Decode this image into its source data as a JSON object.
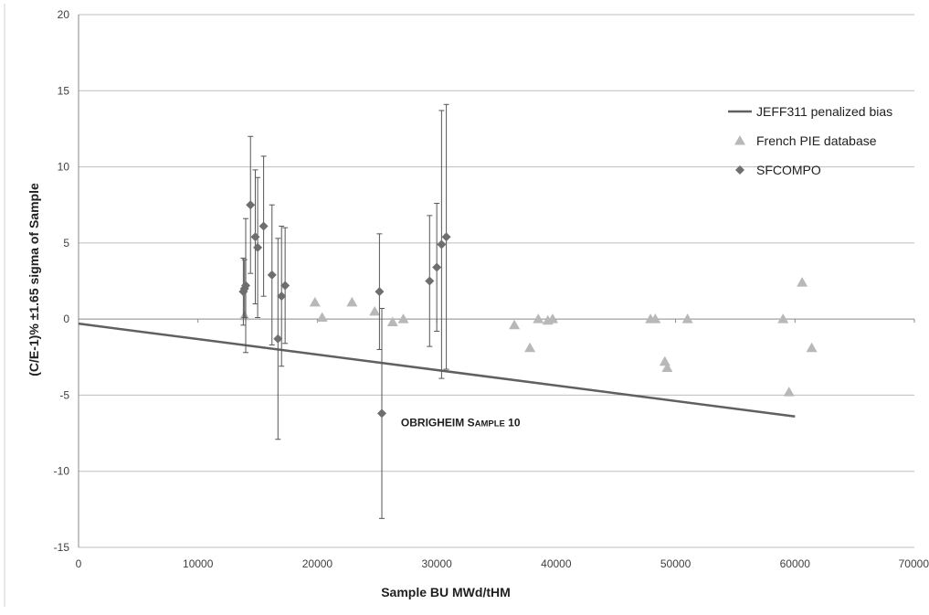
{
  "chart_data": {
    "type": "scatter",
    "xlabel": "Sample BU MWd/tHM",
    "ylabel": "(C/E-1)% ±1.65 sigma of Sample",
    "xlim": [
      0,
      70000
    ],
    "ylim": [
      -15,
      20
    ],
    "x_ticks": [
      "0",
      "10000",
      "20000",
      "30000",
      "40000",
      "50000",
      "60000",
      "70000"
    ],
    "y_ticks": [
      "20",
      "15",
      "10",
      "5",
      "0",
      "-5",
      "-10",
      "-15"
    ],
    "grid": "horizontal",
    "legend_position": "right",
    "colors": {
      "line": "#606060",
      "triangle": "#b8b8b8",
      "diamond": "#6e6e6e",
      "grid": "#bdbdbd",
      "errorbar": "#555555"
    },
    "series": [
      {
        "name": "JEFF311 penalized bias",
        "kind": "line",
        "points": [
          [
            0,
            -0.3
          ],
          [
            60000,
            -6.4
          ]
        ]
      },
      {
        "name": "French PIE database",
        "kind": "scatter",
        "marker": "triangle",
        "points": [
          [
            13900,
            0.2
          ],
          [
            19800,
            1.1
          ],
          [
            20400,
            0.1
          ],
          [
            22900,
            1.1
          ],
          [
            24800,
            0.5
          ],
          [
            26300,
            -0.2
          ],
          [
            27200,
            0.0
          ],
          [
            36500,
            -0.4
          ],
          [
            37800,
            -1.9
          ],
          [
            38500,
            0.0
          ],
          [
            39300,
            -0.1
          ],
          [
            39700,
            0.0
          ],
          [
            47900,
            0.0
          ],
          [
            48300,
            0.0
          ],
          [
            49100,
            -2.8
          ],
          [
            49300,
            -3.2
          ],
          [
            51000,
            0.0
          ],
          [
            59000,
            0.0
          ],
          [
            59500,
            -4.8
          ],
          [
            60600,
            2.4
          ],
          [
            61400,
            -1.9
          ]
        ]
      },
      {
        "name": "SFCOMPO",
        "kind": "scatter",
        "marker": "diamond",
        "points": [
          {
            "x": 13800,
            "y": 1.8,
            "err": 2.2
          },
          {
            "x": 13900,
            "y": 2.0,
            "err": 1.9
          },
          {
            "x": 14000,
            "y": 2.2,
            "err": 4.4
          },
          {
            "x": 14400,
            "y": 7.5,
            "err": 4.5
          },
          {
            "x": 14800,
            "y": 5.4,
            "err": 4.4
          },
          {
            "x": 15000,
            "y": 4.7,
            "err": 4.6
          },
          {
            "x": 15500,
            "y": 6.1,
            "err": 4.6
          },
          {
            "x": 16200,
            "y": 2.9,
            "err": 4.6
          },
          {
            "x": 16700,
            "y": -1.3,
            "err": 6.6
          },
          {
            "x": 17000,
            "y": 1.5,
            "err": 4.6
          },
          {
            "x": 17300,
            "y": 2.2,
            "err": 3.8
          },
          {
            "x": 25200,
            "y": 1.8,
            "err": 3.8
          },
          {
            "x": 25400,
            "y": -6.2,
            "err": 6.9
          },
          {
            "x": 29400,
            "y": 2.5,
            "err": 4.3
          },
          {
            "x": 30000,
            "y": 3.4,
            "err": 4.2
          },
          {
            "x": 30400,
            "y": 4.9,
            "err": 8.8
          },
          {
            "x": 30800,
            "y": 5.4,
            "err": 8.7
          }
        ]
      }
    ],
    "annotations": [
      {
        "text_main": "OBRIGHEIM S",
        "text_sc": "AMPLE",
        "text_num": " 10",
        "x": 27000,
        "y": -6.8
      }
    ]
  }
}
